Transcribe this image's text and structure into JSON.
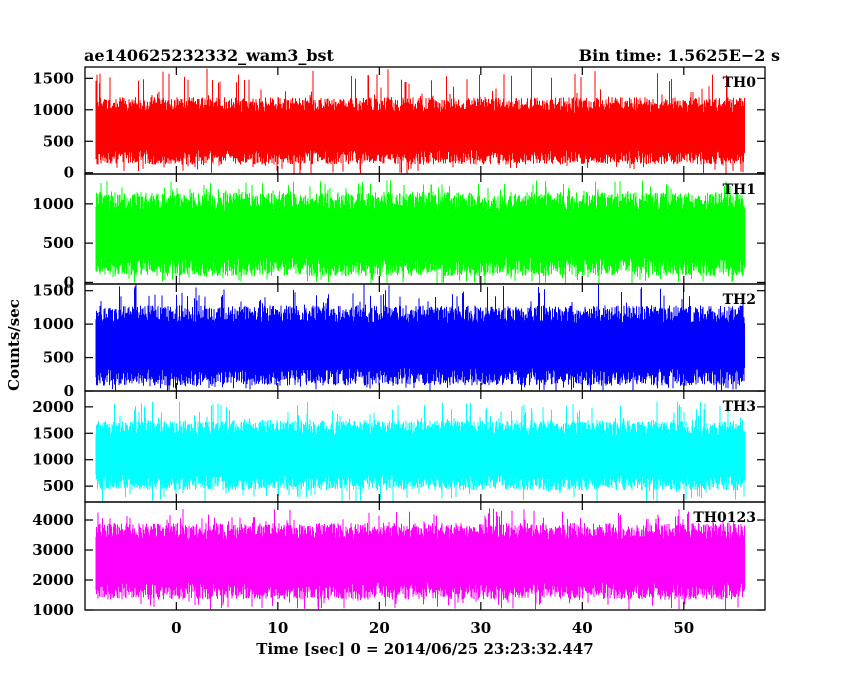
{
  "chart_data": {
    "type": "line",
    "title_left": "ae140625232332_wam3_bst",
    "title_right": "Bin time: 1.5625E−2 s",
    "xlabel": "Time [sec] 0 = 2014/06/25 23:23:32.447",
    "ylabel": "Counts/sec",
    "xlim": [
      -9,
      58
    ],
    "x_ticks": [
      0,
      10,
      20,
      30,
      40,
      50
    ],
    "x_tick_labels": [
      "0",
      "10",
      "20",
      "30",
      "40",
      "50"
    ],
    "data_x_range": [
      -8,
      56
    ],
    "grid": false,
    "panels": [
      {
        "name": "TH0",
        "color": "#ff0000",
        "ylim": [
          -20,
          1680
        ],
        "y_ticks": [
          0,
          500,
          1000,
          1500
        ],
        "y_tick_labels": [
          "0",
          "500",
          "1000",
          "1500"
        ],
        "baseline": 650,
        "min_typical": 130,
        "max_typical": 1200,
        "peak_max": 1680
      },
      {
        "name": "TH1",
        "color": "#00ff00",
        "ylim": [
          -20,
          1380
        ],
        "y_ticks": [
          0,
          500,
          1000
        ],
        "y_tick_labels": [
          "0",
          "500",
          "1000"
        ],
        "baseline": 620,
        "min_typical": 80,
        "max_typical": 1150,
        "peak_max": 1300
      },
      {
        "name": "TH2",
        "color": "#0000ff",
        "ylim": [
          0,
          1600
        ],
        "y_ticks": [
          0,
          500,
          1000,
          1500
        ],
        "y_tick_labels": [
          "0",
          "500",
          "1000",
          "1500"
        ],
        "baseline": 680,
        "min_typical": 80,
        "max_typical": 1280,
        "peak_max": 1600
      },
      {
        "name": "TH3",
        "color": "#00ffff",
        "ylim": [
          200,
          2300
        ],
        "y_ticks": [
          500,
          1000,
          1500,
          2000
        ],
        "y_tick_labels": [
          "500",
          "1000",
          "1500",
          "2000"
        ],
        "baseline": 1100,
        "min_typical": 420,
        "max_typical": 1750,
        "peak_max": 2100
      },
      {
        "name": "TH0123",
        "color": "#ff00ff",
        "ylim": [
          1000,
          4600
        ],
        "y_ticks": [
          1000,
          2000,
          3000,
          4000
        ],
        "y_tick_labels": [
          "1000",
          "2000",
          "3000",
          "4000"
        ],
        "baseline": 2650,
        "min_typical": 1350,
        "max_typical": 3900,
        "peak_max": 4400
      }
    ]
  }
}
